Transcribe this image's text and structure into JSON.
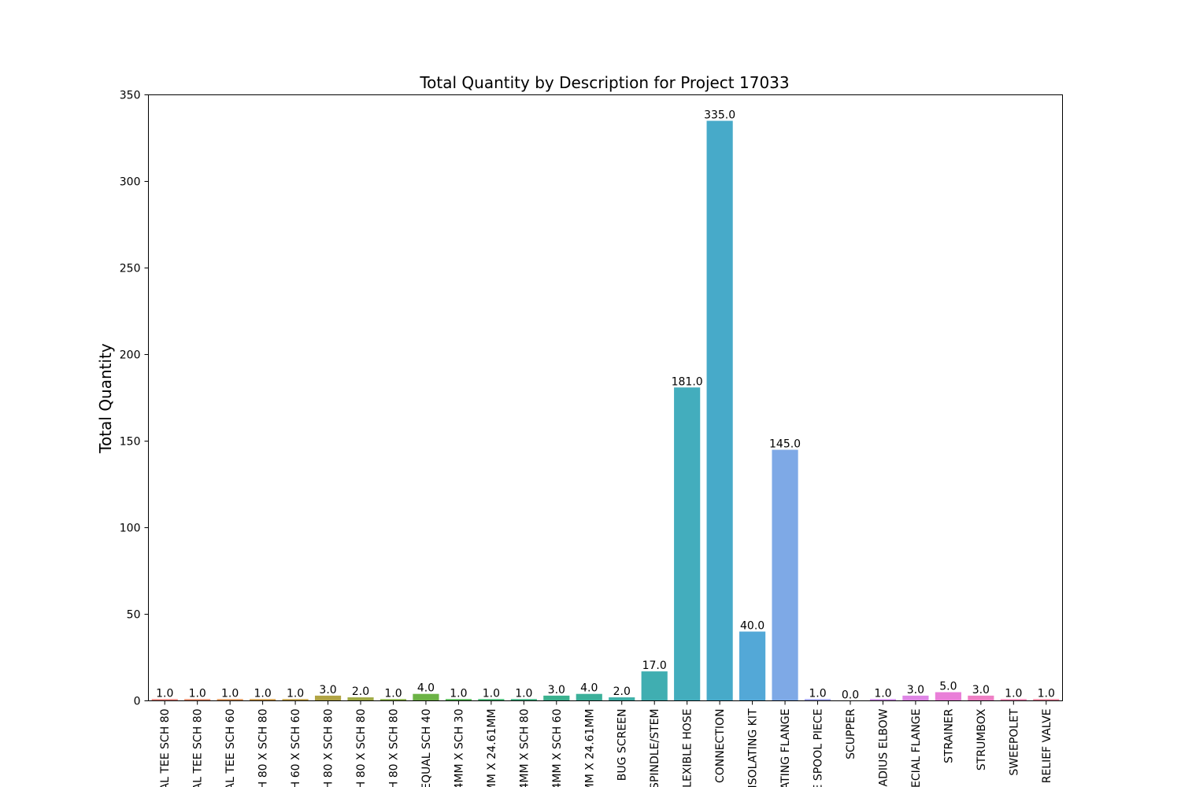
{
  "chart_data": {
    "type": "bar",
    "title": "Total Quantity by Description for Project 17033",
    "xlabel": "",
    "ylabel": "Total Quantity",
    "ylim": [
      0,
      350
    ],
    "yticks": [
      "0",
      "50",
      "100",
      "150",
      "200",
      "250",
      "300",
      "350"
    ],
    "grid": false,
    "categories": [
      "AL TEE SCH 80",
      "AL TEE SCH 80",
      "AL TEE SCH 60",
      "H 80 X SCH 80",
      "H 60 X SCH 60",
      "H 80 X SCH 80",
      "H 80 X SCH 80",
      "H 80 X SCH 80",
      "EQUAL SCH 40",
      "4MM X SCH 30",
      "MM X 24.61MM",
      "4MM X SCH 80",
      "4MM X SCH 60",
      "MM X 24.61MM",
      "BUG SCREEN",
      "SPINDLE/STEM",
      "LEXIBLE HOSE",
      "E CONNECTION",
      "ISOLATING KIT",
      "ATING FLANGE",
      "E SPOOL PIECE",
      "SCUPPER",
      "ADIUS ELBOW",
      "ECIAL FLANGE",
      "STRAINER",
      "STRUMBOX",
      "SWEEPOLET",
      "RELIEF VALVE"
    ],
    "values": [
      1,
      1,
      1,
      1,
      1,
      3,
      2,
      1,
      4,
      1,
      1,
      1,
      3,
      4,
      2,
      17,
      181,
      335,
      40,
      145,
      1,
      0,
      1,
      3,
      5,
      3,
      1,
      1
    ],
    "value_labels": [
      "1.0",
      "1.0",
      "1.0",
      "1.0",
      "1.0",
      "3.0",
      "2.0",
      "1.0",
      "4.0",
      "1.0",
      "1.0",
      "1.0",
      "3.0",
      "4.0",
      "2.0",
      "17.0",
      "181.0",
      "335.0",
      "40.0",
      "145.0",
      "1.0",
      "0.0",
      "1.0",
      "3.0",
      "5.0",
      "3.0",
      "1.0",
      "1.0"
    ],
    "colors": [
      "#e8847c",
      "#e38a6a",
      "#dc9254",
      "#d09947",
      "#c29f45",
      "#b1a444",
      "#9ea944",
      "#86af43",
      "#6cb346",
      "#4cb54f",
      "#3bb46b",
      "#3ab37f",
      "#3bb18e",
      "#3cb09a",
      "#3eafa6",
      "#40aeb1",
      "#43adbd",
      "#47aac9",
      "#53a8d7",
      "#7ea9e6",
      "#a1a3ec",
      "#bd9aec",
      "#d08fea",
      "#de86e5",
      "#e97fd8",
      "#ee80c5",
      "#ef85b3",
      "#ed86a0"
    ]
  }
}
